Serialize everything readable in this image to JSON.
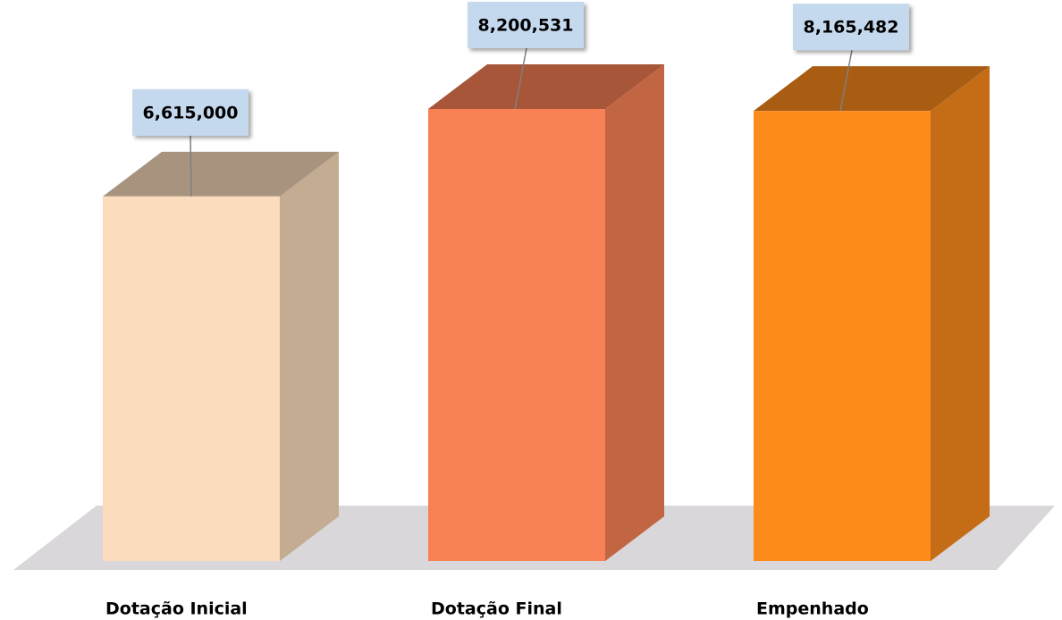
{
  "chart_data": {
    "type": "bar3d",
    "categories": [
      "Dotação Inicial",
      "Dotação Final",
      "Empenhado"
    ],
    "values": [
      6615000,
      8200531,
      8165482
    ],
    "value_labels": [
      "6,615,000",
      "8,200,531",
      "8,165,482"
    ],
    "colors": [
      "#fbdcbd",
      "#f98156",
      "#fc8b1c"
    ]
  }
}
